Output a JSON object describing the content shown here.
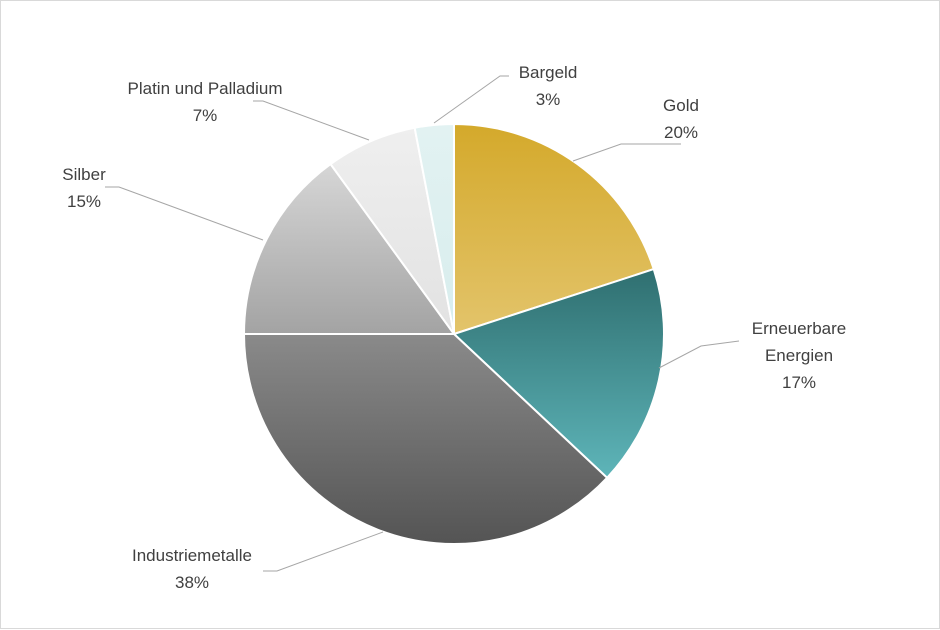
{
  "chart_data": {
    "type": "pie",
    "title": "",
    "slices": [
      {
        "name": "Gold",
        "value": 20,
        "pct_label": "20%",
        "color_top": "#d4a92b",
        "color_bottom": "#e3c46b"
      },
      {
        "name": "Erneuerbare Energien",
        "label_lines": [
          "Erneuerbare",
          "Energien"
        ],
        "value": 17,
        "pct_label": "17%",
        "color_top": "#2f6f70",
        "color_bottom": "#5eb5b9"
      },
      {
        "name": "Industriemetalle",
        "value": 38,
        "pct_label": "38%",
        "color_top": "#8a8a8a",
        "color_bottom": "#545454"
      },
      {
        "name": "Silber",
        "value": 15,
        "pct_label": "15%",
        "color_top": "#d6d6d6",
        "color_bottom": "#a3a3a3"
      },
      {
        "name": "Platin und Palladium",
        "value": 7,
        "pct_label": "7%",
        "color_top": "#efefef",
        "color_bottom": "#e2e2e2"
      },
      {
        "name": "Bargeld",
        "value": 3,
        "pct_label": "3%",
        "color_top": "#e2f2f2",
        "color_bottom": "#d8eded"
      }
    ],
    "start_angle": "12 o'clock",
    "direction": "clockwise",
    "legend": "none",
    "data_labels": "outside with leader lines"
  }
}
